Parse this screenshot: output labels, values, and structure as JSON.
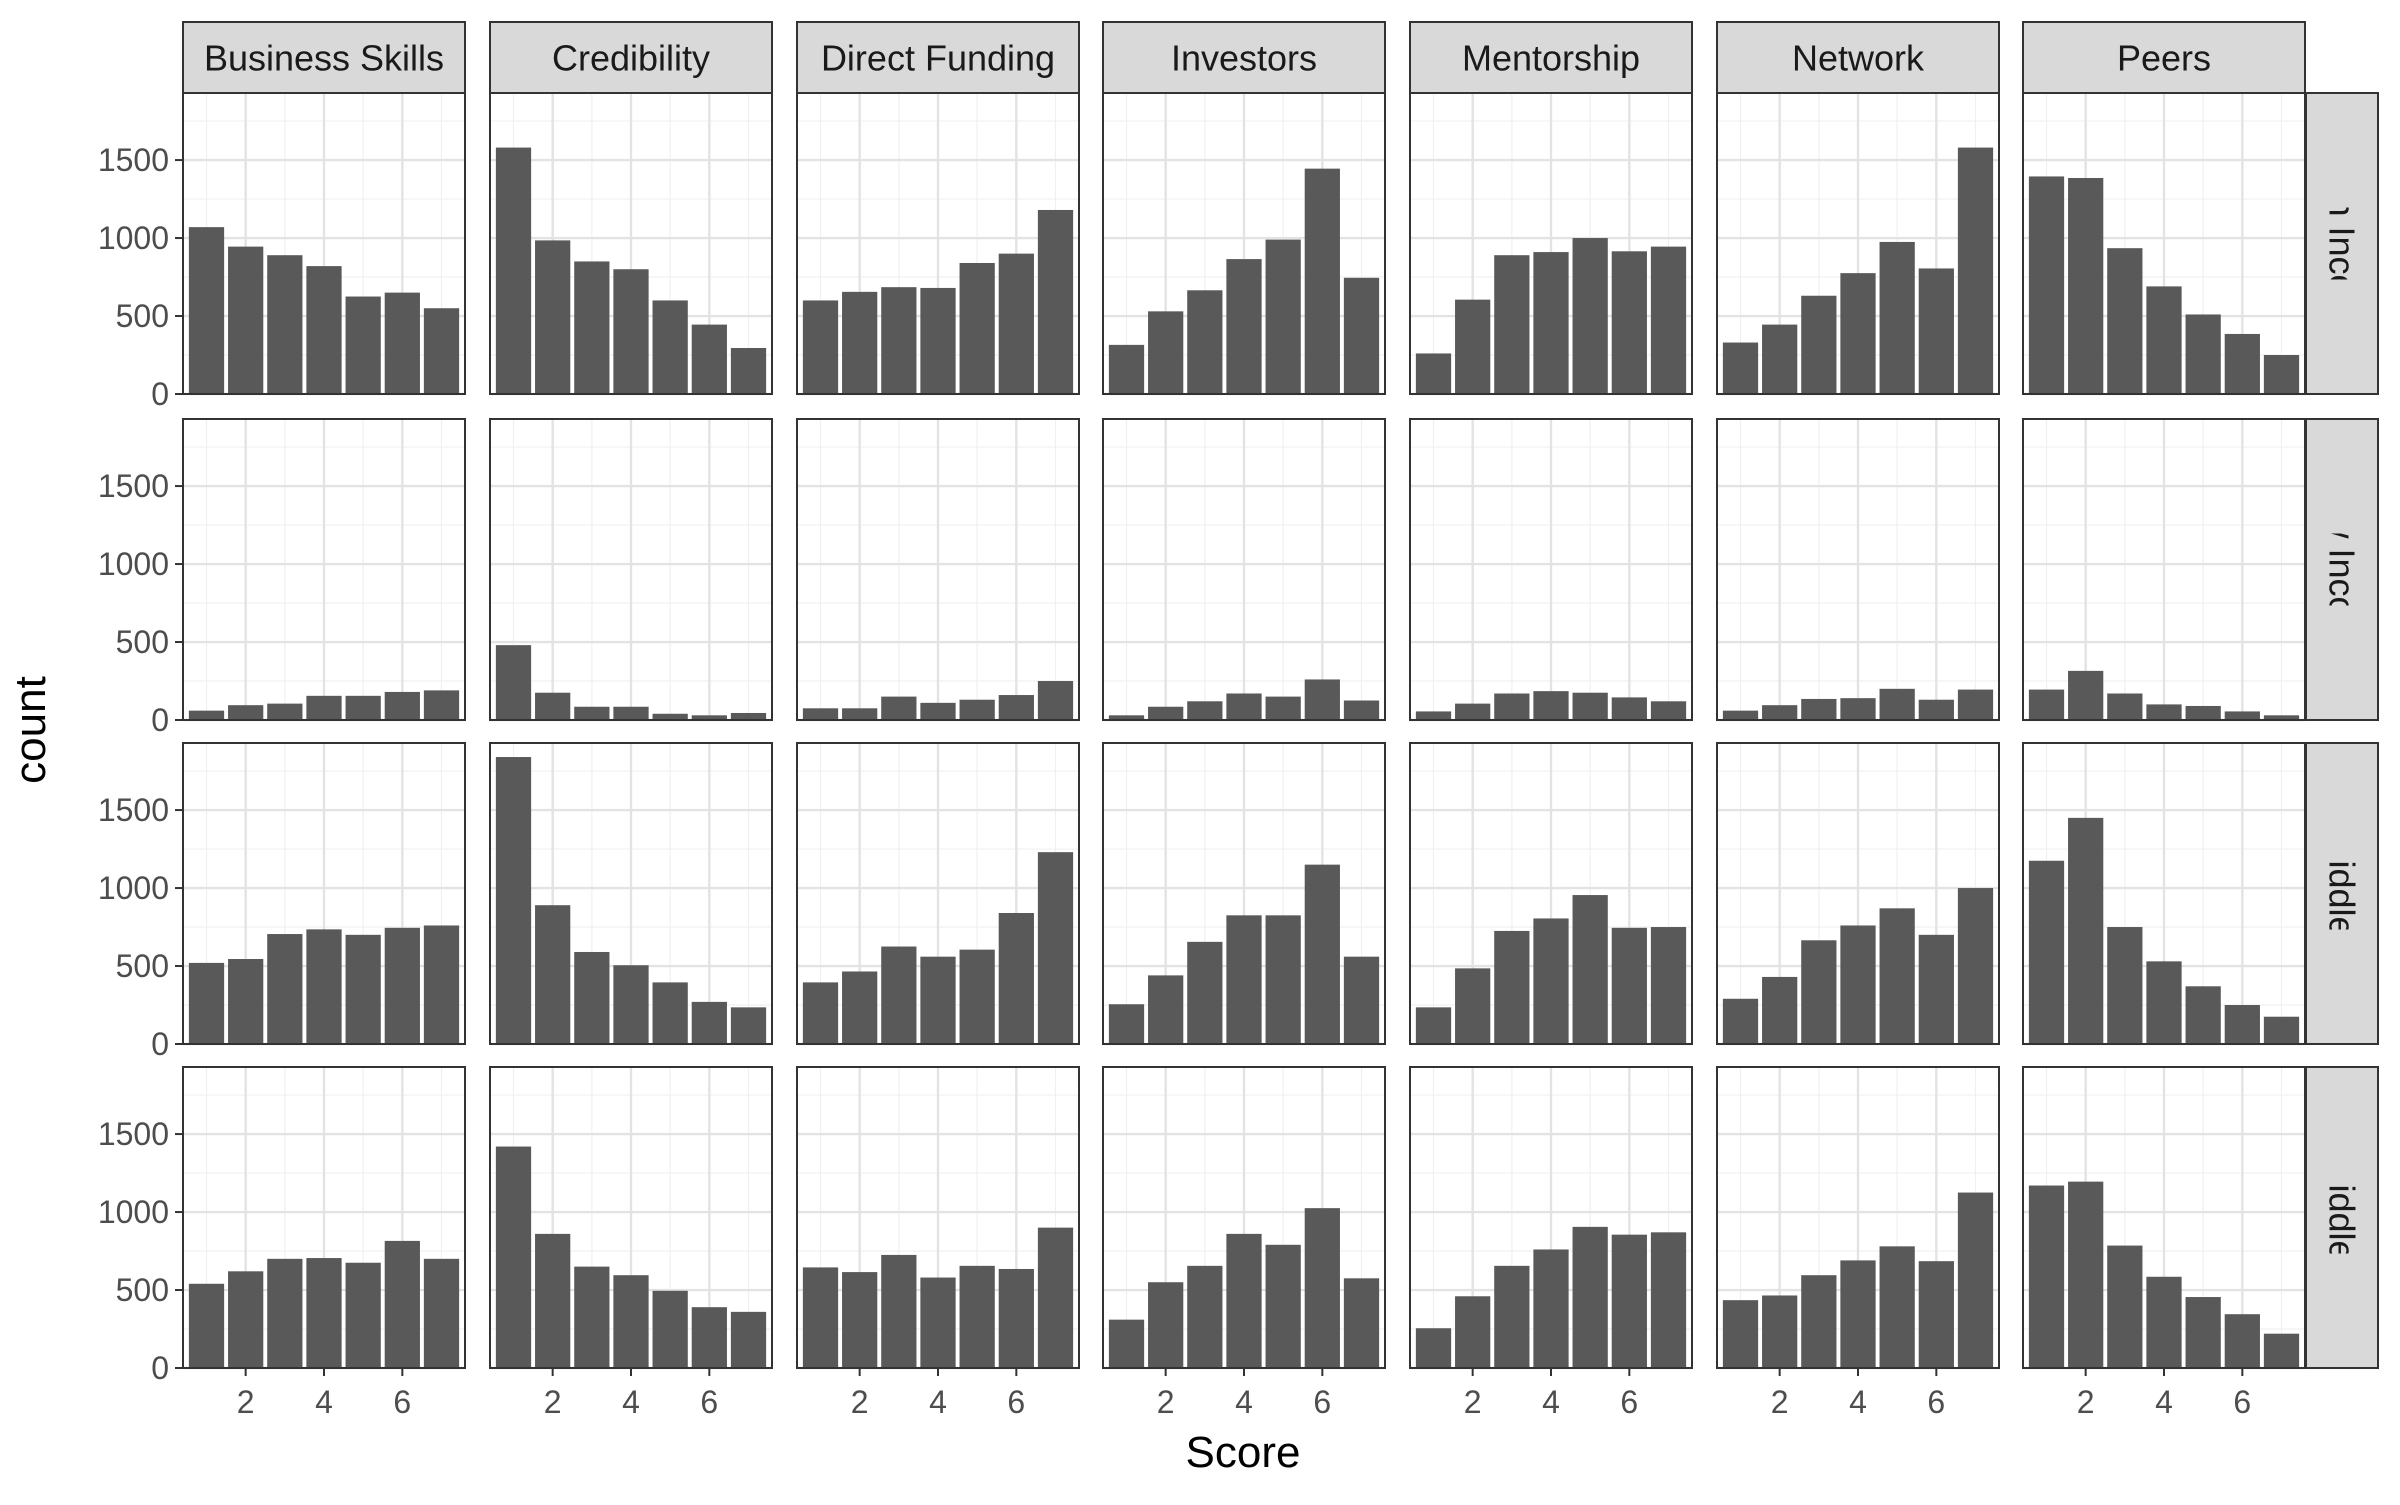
{
  "chart_data": {
    "type": "bar",
    "layout": "faceted-grid",
    "xlabel": "Score",
    "ylabel": "count",
    "x": [
      1,
      2,
      3,
      4,
      5,
      6,
      7
    ],
    "x_ticks": [
      2,
      4,
      6
    ],
    "ylim": [
      0,
      1930
    ],
    "y_ticks": [
      0,
      500,
      1000,
      1500
    ],
    "grid": true,
    "bar_color": "#595959",
    "strip_fill": "#d9d9d9",
    "columns": [
      "Business Skills",
      "Credibility",
      "Direct Funding",
      "Investors",
      "Mentorship",
      "Network",
      "Peers"
    ],
    "rows": [
      "High Income",
      "Low Income",
      "Lower Middle Income",
      "Upper Middle Income"
    ],
    "values": {
      "High Income": {
        "Business Skills": [
          1070,
          945,
          890,
          820,
          625,
          650,
          550
        ],
        "Credibility": [
          1580,
          985,
          850,
          800,
          600,
          445,
          295
        ],
        "Direct Funding": [
          600,
          655,
          685,
          680,
          840,
          900,
          1180
        ],
        "Investors": [
          315,
          530,
          665,
          865,
          990,
          1445,
          745
        ],
        "Mentorship": [
          260,
          605,
          890,
          910,
          1000,
          915,
          945
        ],
        "Network": [
          330,
          445,
          630,
          775,
          975,
          805,
          1580
        ],
        "Peers": [
          1395,
          1385,
          935,
          690,
          510,
          385,
          250
        ]
      },
      "Low Income": {
        "Business Skills": [
          60,
          95,
          105,
          155,
          155,
          180,
          190
        ],
        "Credibility": [
          480,
          175,
          85,
          85,
          40,
          30,
          45
        ],
        "Direct Funding": [
          75,
          75,
          150,
          110,
          130,
          160,
          250
        ],
        "Investors": [
          30,
          85,
          120,
          170,
          150,
          260,
          125
        ],
        "Mentorship": [
          55,
          105,
          170,
          185,
          175,
          145,
          120
        ],
        "Network": [
          60,
          95,
          135,
          140,
          200,
          130,
          195
        ],
        "Peers": [
          195,
          315,
          170,
          100,
          90,
          55,
          30
        ]
      },
      "Lower Middle Income": {
        "Business Skills": [
          520,
          545,
          705,
          735,
          700,
          745,
          760
        ],
        "Credibility": [
          1840,
          890,
          590,
          505,
          395,
          270,
          235
        ],
        "Direct Funding": [
          395,
          465,
          625,
          560,
          605,
          840,
          1230
        ],
        "Investors": [
          255,
          440,
          655,
          825,
          825,
          1150,
          560
        ],
        "Mentorship": [
          235,
          485,
          725,
          805,
          955,
          745,
          750
        ],
        "Network": [
          290,
          430,
          665,
          760,
          870,
          700,
          1000
        ],
        "Peers": [
          1175,
          1450,
          750,
          530,
          370,
          250,
          175
        ]
      },
      "Upper Middle Income": {
        "Business Skills": [
          540,
          620,
          700,
          705,
          675,
          815,
          700
        ],
        "Credibility": [
          1420,
          860,
          650,
          595,
          495,
          390,
          360
        ],
        "Direct Funding": [
          645,
          615,
          725,
          580,
          655,
          635,
          900
        ],
        "Investors": [
          310,
          550,
          655,
          860,
          790,
          1025,
          575
        ],
        "Mentorship": [
          255,
          460,
          655,
          760,
          905,
          855,
          870
        ],
        "Network": [
          435,
          465,
          595,
          690,
          780,
          685,
          1125
        ],
        "Peers": [
          1170,
          1195,
          785,
          585,
          455,
          345,
          220
        ]
      }
    }
  }
}
